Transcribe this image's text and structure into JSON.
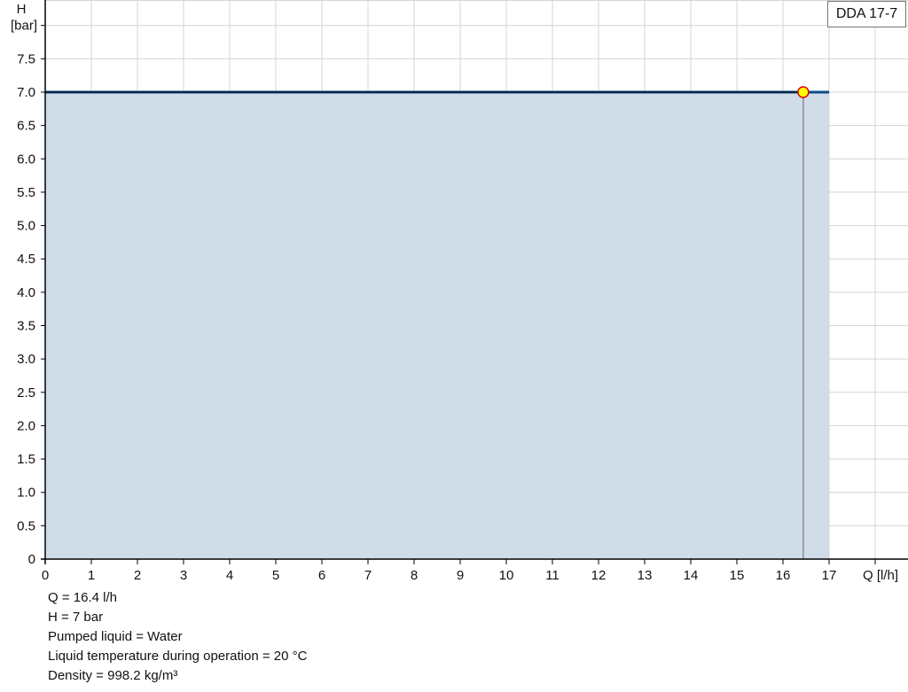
{
  "chart_data": {
    "type": "area",
    "title": "",
    "xlabel": "Q [l/h]",
    "ylabel_line1": "H",
    "ylabel_line2": "[bar]",
    "xlim": [
      0,
      18
    ],
    "ylim": [
      0,
      8
    ],
    "grid": true,
    "xticks": [
      0,
      1,
      2,
      3,
      4,
      5,
      6,
      7,
      8,
      9,
      10,
      11,
      12,
      13,
      14,
      15,
      16,
      17
    ],
    "yticks": [
      "0",
      "0.5",
      "1.0",
      "1.5",
      "2.0",
      "2.5",
      "3.0",
      "3.5",
      "4.0",
      "4.5",
      "5.0",
      "5.5",
      "6.0",
      "6.5",
      "7.0",
      "7.5"
    ],
    "series": [
      {
        "name": "DDA 17-7",
        "x": [
          0,
          17
        ],
        "y": [
          7,
          7
        ],
        "color": "#0b4a8a",
        "fill": "#d0dce8"
      }
    ],
    "duty_point": {
      "x": 16.44,
      "y": 7,
      "color": "#ffff00",
      "stroke": "#e00000"
    },
    "legend_placement": "top-right"
  },
  "info": {
    "q": "Q = 16.4 l/h",
    "h": "H = 7 bar",
    "liquid": "Pumped liquid = Water",
    "temperature": "Liquid temperature during operation = 20 °C",
    "density": "Density = 998.2 kg/m³"
  }
}
